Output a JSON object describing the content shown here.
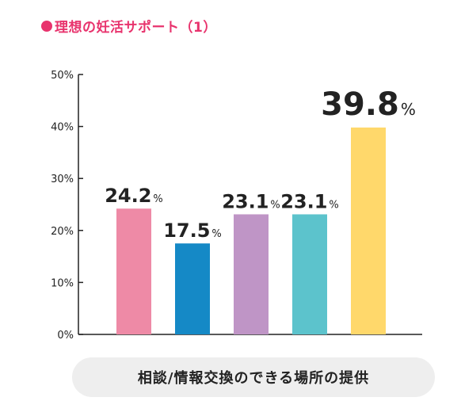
{
  "title": "理想の妊活サポート（1）",
  "colors": {
    "accent": "#e8336d",
    "axis": "#222222"
  },
  "chart_data": {
    "type": "bar",
    "xlabel": "相談/情報交換のできる場所の提供",
    "ylabel": "",
    "ylim": [
      0,
      50
    ],
    "yticks": [
      "0%",
      "10%",
      "20%",
      "30%",
      "40%",
      "50%"
    ],
    "grid": false,
    "series": [
      {
        "values": [
          24.2,
          17.5,
          23.1,
          23.1,
          39.8
        ],
        "labels": [
          "24.2",
          "17.5",
          "23.1",
          "23.1",
          "39.8"
        ],
        "unit": "%",
        "colors": [
          "#ee8aa6",
          "#1589c6",
          "#bf95c6",
          "#5cc3cc",
          "#ffd86b"
        ]
      }
    ]
  }
}
